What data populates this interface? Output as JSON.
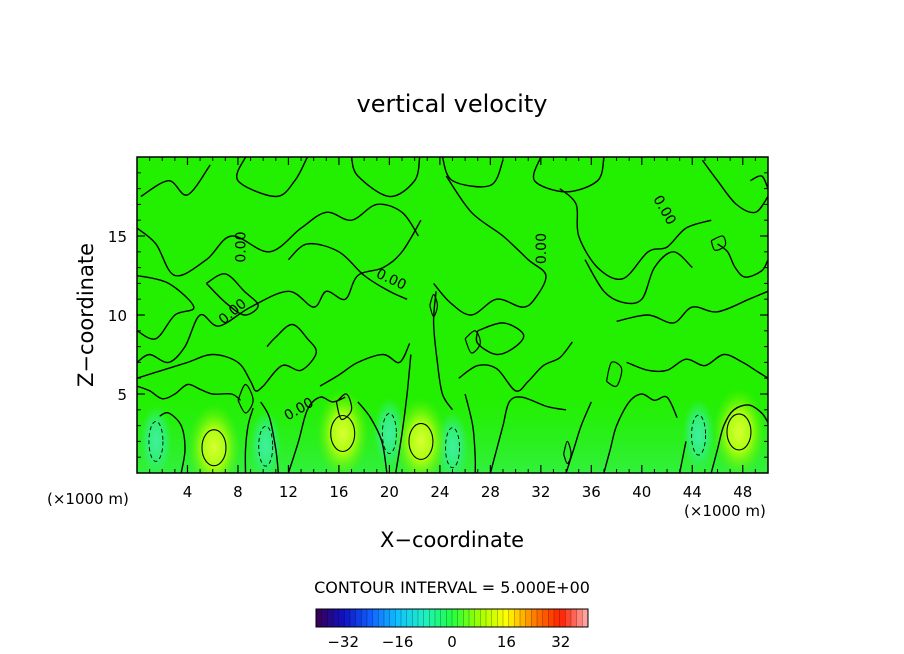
{
  "chart_data": {
    "type": "contour",
    "title": "vertical velocity",
    "xlabel": "X−coordinate",
    "ylabel": "Z−coordinate",
    "x_unit_left": "(×1000 m)",
    "x_unit_right": "(×1000 m)",
    "xlim": [
      0,
      50
    ],
    "ylim": [
      0,
      20
    ],
    "x_ticks": [
      4,
      8,
      12,
      16,
      20,
      24,
      28,
      32,
      36,
      40,
      44,
      48
    ],
    "y_ticks": [
      5,
      10,
      15
    ],
    "contour_interval_text": "CONTOUR INTERVAL = 5.000E+00",
    "contour_level_label": "0.00",
    "colorbar": {
      "vmin": -40,
      "vmax": 40,
      "ticks": [
        -32,
        -16,
        0,
        16,
        32
      ],
      "colors": [
        "#3a0050",
        "#1010c0",
        "#1060ff",
        "#10c0ff",
        "#20f0c0",
        "#20ff40",
        "#a0ff00",
        "#ffff00",
        "#ff8000",
        "#ff2000",
        "#ffb0b0"
      ]
    },
    "background_color": "#22f000",
    "updraft_cores": [
      {
        "x": 6.1,
        "z": 1.6
      },
      {
        "x": 16.3,
        "z": 2.5
      },
      {
        "x": 22.5,
        "z": 2.0
      },
      {
        "x": 47.7,
        "z": 2.6
      }
    ],
    "downdraft_cores": [
      {
        "x": 1.5,
        "z": 2.0
      },
      {
        "x": 10.2,
        "z": 1.7
      },
      {
        "x": 20.0,
        "z": 2.5
      },
      {
        "x": 25.0,
        "z": 1.6
      },
      {
        "x": 44.5,
        "z": 2.4
      }
    ],
    "zero_contours": [
      [
        [
          0.3,
          17.5
        ],
        [
          2.5,
          18.5
        ],
        [
          4,
          17.6
        ],
        [
          5.8,
          19.5
        ]
      ],
      [
        [
          8.6,
          20
        ],
        [
          8,
          18.5
        ],
        [
          11,
          17.5
        ],
        [
          12.5,
          18.5
        ],
        [
          13.5,
          20
        ]
      ],
      [
        [
          17,
          20
        ],
        [
          17.5,
          18.8
        ],
        [
          20,
          17.5
        ],
        [
          22,
          18.5
        ],
        [
          22.4,
          20
        ]
      ],
      [
        [
          24.2,
          20
        ],
        [
          25,
          18.5
        ],
        [
          28,
          18.2
        ],
        [
          29,
          19.8
        ]
      ],
      [
        [
          32,
          20
        ],
        [
          31.5,
          18.5
        ],
        [
          34,
          17.8
        ],
        [
          36.5,
          18.5
        ],
        [
          37,
          20
        ]
      ],
      [
        [
          0,
          15.5
        ],
        [
          1.5,
          14.5
        ],
        [
          3,
          12.5
        ],
        [
          5.5,
          13.5
        ],
        [
          7.5,
          15
        ],
        [
          10.5,
          14
        ],
        [
          13,
          15.5
        ],
        [
          15,
          16.5
        ],
        [
          17,
          16
        ],
        [
          19,
          17
        ],
        [
          21,
          16.5
        ],
        [
          22.3,
          15
        ]
      ],
      [
        [
          0,
          12.5
        ],
        [
          2.5,
          12
        ],
        [
          4.5,
          10.5
        ],
        [
          3,
          10
        ],
        [
          1.5,
          8.5
        ],
        [
          0,
          9
        ]
      ],
      [
        [
          22.5,
          16
        ],
        [
          21,
          14
        ],
        [
          19.5,
          13
        ],
        [
          17.5,
          12.5
        ],
        [
          16.5,
          11
        ],
        [
          15,
          11.5
        ],
        [
          14,
          10.5
        ],
        [
          12,
          11.5
        ],
        [
          9,
          10.5
        ],
        [
          6.5,
          9.3
        ],
        [
          5,
          10
        ],
        [
          3.8,
          8
        ],
        [
          2.5,
          7
        ],
        [
          1,
          7.5
        ],
        [
          0,
          7
        ]
      ],
      [
        [
          5.5,
          12
        ],
        [
          7,
          12.6
        ],
        [
          8.5,
          11.5
        ],
        [
          9.6,
          10.6
        ],
        [
          8.5,
          10
        ],
        [
          7,
          10.8
        ],
        [
          5.5,
          12
        ]
      ],
      [
        [
          12,
          13.5
        ],
        [
          13.5,
          14.5
        ],
        [
          16,
          14
        ],
        [
          18,
          12.5
        ],
        [
          20,
          11.5
        ],
        [
          21.4,
          11
        ]
      ],
      [
        [
          24.5,
          18.8
        ],
        [
          26.5,
          16.5
        ],
        [
          29,
          15
        ],
        [
          31,
          13.5
        ],
        [
          32.4,
          12.5
        ],
        [
          31.5,
          11
        ],
        [
          30.5,
          10.5
        ],
        [
          28.5,
          11
        ],
        [
          26.5,
          10
        ],
        [
          24.8,
          10.8
        ],
        [
          23.5,
          12
        ]
      ],
      [
        [
          27,
          9
        ],
        [
          29,
          9.5
        ],
        [
          30.6,
          8.8
        ],
        [
          30,
          8
        ],
        [
          28.5,
          7.5
        ],
        [
          27,
          8.2
        ],
        [
          27,
          9
        ]
      ],
      [
        [
          33.5,
          18
        ],
        [
          34.8,
          17
        ],
        [
          35,
          15
        ],
        [
          36.5,
          13
        ],
        [
          38.5,
          12.3
        ],
        [
          40.5,
          14
        ],
        [
          42,
          14.3
        ],
        [
          43.5,
          15.5
        ],
        [
          45.5,
          16
        ]
      ],
      [
        [
          35.5,
          13.5
        ],
        [
          37,
          11.5
        ],
        [
          38.5,
          10.8
        ],
        [
          40,
          11
        ],
        [
          41,
          13
        ],
        [
          42.5,
          14
        ],
        [
          44,
          13
        ]
      ],
      [
        [
          38,
          9.6
        ],
        [
          40.5,
          10
        ],
        [
          42.5,
          9.5
        ],
        [
          44,
          10.5
        ],
        [
          46,
          10.2
        ],
        [
          48.5,
          11
        ],
        [
          50,
          11.5
        ]
      ],
      [
        [
          44.8,
          19.8
        ],
        [
          46,
          18.5
        ],
        [
          47.5,
          17
        ],
        [
          49,
          16.5
        ],
        [
          50,
          17.5
        ]
      ],
      [
        [
          46,
          14.5
        ],
        [
          46.8,
          14
        ],
        [
          47.4,
          13
        ],
        [
          48.2,
          12.4
        ],
        [
          49.5,
          12.8
        ],
        [
          50,
          13.5
        ]
      ],
      [
        [
          48.6,
          18.5
        ],
        [
          49.5,
          18.8
        ],
        [
          50,
          18
        ]
      ],
      [
        [
          0,
          6
        ],
        [
          2,
          6.5
        ],
        [
          4,
          7
        ],
        [
          6,
          7.5
        ],
        [
          8,
          7
        ],
        [
          9,
          5.8
        ],
        [
          9.4,
          5.2
        ],
        [
          10,
          5.5
        ],
        [
          11.5,
          6.8
        ],
        [
          13,
          6.5
        ],
        [
          14.2,
          7.6
        ],
        [
          13.5,
          8.5
        ],
        [
          12.3,
          9.4
        ],
        [
          11,
          8.6
        ],
        [
          10.3,
          8
        ]
      ],
      [
        [
          14.5,
          5.5
        ],
        [
          16,
          6.2
        ],
        [
          17.5,
          7
        ],
        [
          19.5,
          7.5
        ],
        [
          20.8,
          7
        ],
        [
          21.6,
          8.2
        ]
      ],
      [
        [
          23.7,
          11.5
        ],
        [
          23.5,
          9.5
        ],
        [
          23.8,
          7
        ],
        [
          24.2,
          5
        ],
        [
          25,
          4
        ]
      ],
      [
        [
          25.5,
          6
        ],
        [
          27,
          6.8
        ],
        [
          28.5,
          6.6
        ],
        [
          30,
          5.2
        ],
        [
          31,
          5.8
        ],
        [
          32.2,
          6.8
        ],
        [
          33.5,
          7.3
        ],
        [
          34.5,
          8.3
        ]
      ],
      [
        [
          38.8,
          7
        ],
        [
          40.5,
          6.5
        ],
        [
          42,
          6.5
        ],
        [
          43.5,
          7.2
        ],
        [
          45,
          6.8
        ],
        [
          46.5,
          7.5
        ],
        [
          48,
          7
        ],
        [
          49,
          6.5
        ],
        [
          50,
          6
        ]
      ],
      [
        [
          0,
          5.5
        ],
        [
          1,
          5.2
        ],
        [
          2,
          4.7
        ],
        [
          3,
          5
        ],
        [
          4,
          5.6
        ],
        [
          5,
          5.3
        ],
        [
          6,
          5
        ],
        [
          7.5,
          5
        ],
        [
          8.2,
          4.6
        ]
      ],
      [
        [
          9.8,
          4.5
        ],
        [
          10.5,
          3.5
        ],
        [
          11,
          1.5
        ],
        [
          11.2,
          0
        ]
      ],
      [
        [
          12,
          0
        ],
        [
          12.8,
          2
        ],
        [
          13.5,
          4
        ],
        [
          14.5,
          4.8
        ],
        [
          15.5,
          4.5
        ],
        [
          16.5,
          4.8
        ]
      ],
      [
        [
          17.5,
          4.5
        ],
        [
          18.5,
          3.5
        ],
        [
          19.4,
          2
        ],
        [
          19.8,
          0
        ]
      ],
      [
        [
          20.5,
          0
        ],
        [
          21,
          2.5
        ],
        [
          21.4,
          5
        ],
        [
          21.7,
          7.5
        ]
      ],
      [
        [
          26,
          5
        ],
        [
          26.6,
          3
        ],
        [
          26.8,
          1
        ],
        [
          26.8,
          0
        ]
      ],
      [
        [
          28,
          0
        ],
        [
          28.5,
          1.5
        ],
        [
          29,
          3
        ],
        [
          29.5,
          4.5
        ],
        [
          30.5,
          4.8
        ],
        [
          32.5,
          4.2
        ],
        [
          34,
          4
        ]
      ],
      [
        [
          34,
          0
        ],
        [
          34.6,
          1.5
        ],
        [
          35.2,
          3
        ],
        [
          36,
          4.5
        ]
      ],
      [
        [
          37,
          0
        ],
        [
          37.5,
          1.5
        ],
        [
          38,
          3
        ],
        [
          39,
          4.5
        ],
        [
          40,
          5
        ],
        [
          41,
          4.6
        ],
        [
          42,
          4.8
        ],
        [
          42.8,
          3.5
        ]
      ],
      [
        [
          43.5,
          2
        ],
        [
          43.2,
          0.8
        ],
        [
          43,
          0
        ]
      ],
      [
        [
          45.5,
          0
        ],
        [
          46,
          1.5
        ],
        [
          46.5,
          3
        ],
        [
          47.3,
          4
        ],
        [
          48.5,
          4.3
        ],
        [
          49.5,
          3.8
        ],
        [
          50,
          3.2
        ]
      ],
      [
        [
          3.5,
          0
        ],
        [
          3.8,
          1.5
        ],
        [
          3.5,
          3
        ],
        [
          2.5,
          3.8
        ],
        [
          1.8,
          3.6
        ]
      ],
      [
        [
          8.6,
          0
        ],
        [
          8.6,
          1.5
        ],
        [
          8.8,
          3
        ],
        [
          9.2,
          4.1
        ]
      ]
    ],
    "closed_small_contours": [
      [
        [
          8,
          4.6
        ],
        [
          8.6,
          5.6
        ],
        [
          9.2,
          4.6
        ],
        [
          8.6,
          3.8
        ],
        [
          8,
          4.6
        ]
      ],
      [
        [
          15.8,
          4.5
        ],
        [
          16.6,
          5
        ],
        [
          17,
          4
        ],
        [
          16.2,
          3.4
        ],
        [
          15.8,
          4.5
        ]
      ],
      [
        [
          37.2,
          5.8
        ],
        [
          37.6,
          7
        ],
        [
          38.4,
          6.6
        ],
        [
          38,
          5.5
        ],
        [
          37.2,
          5.8
        ]
      ],
      [
        [
          26,
          8.5
        ],
        [
          26.8,
          9
        ],
        [
          27.2,
          8.2
        ],
        [
          26.5,
          7.6
        ],
        [
          26,
          8.5
        ]
      ],
      [
        [
          45.5,
          14.7
        ],
        [
          46.4,
          15
        ],
        [
          46.6,
          14.4
        ],
        [
          45.8,
          14.1
        ],
        [
          45.5,
          14.7
        ]
      ],
      [
        [
          23.2,
          10.6
        ],
        [
          23.5,
          11.3
        ],
        [
          23.8,
          10.6
        ],
        [
          23.5,
          9.9
        ],
        [
          23.2,
          10.6
        ]
      ],
      [
        [
          33.8,
          1.2
        ],
        [
          34.1,
          2
        ],
        [
          34.4,
          1.2
        ],
        [
          34.1,
          0.6
        ],
        [
          33.8,
          1.2
        ]
      ]
    ],
    "contour_labels": [
      {
        "x": 8.6,
        "z": 14.3,
        "angle": -90
      },
      {
        "x": 7.8,
        "z": 10.0,
        "angle": -40
      },
      {
        "x": 20.0,
        "z": 12.0,
        "angle": 25
      },
      {
        "x": 32.4,
        "z": 14.2,
        "angle": -90
      },
      {
        "x": 41.5,
        "z": 16.5,
        "angle": 60
      },
      {
        "x": 13.0,
        "z": 3.8,
        "angle": -30
      }
    ]
  }
}
